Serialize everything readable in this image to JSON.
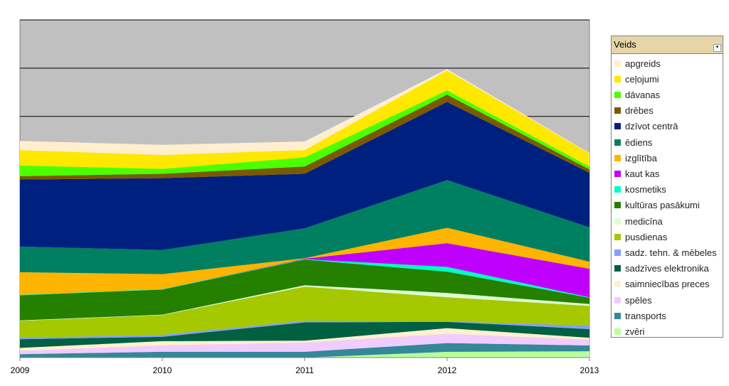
{
  "chart_data": {
    "type": "area",
    "stacked": true,
    "title": "",
    "xlabel": "",
    "ylabel": "",
    "categories": [
      "2009",
      "2010",
      "2011",
      "2012",
      "2013"
    ],
    "ylim": [
      0,
      700
    ],
    "grid": true,
    "legend_title": "Veids",
    "legend_position": "right",
    "series": [
      {
        "name": "zvēri",
        "color": "#B8FF9C",
        "values": [
          0,
          0,
          0,
          12,
          13
        ]
      },
      {
        "name": "transports",
        "color": "#338899",
        "values": [
          7,
          12,
          12,
          18,
          12
        ]
      },
      {
        "name": "spēles",
        "color": "#F0CCFF",
        "values": [
          7,
          13,
          19,
          19,
          12
        ]
      },
      {
        "name": "saimniecības preces",
        "color": "#FFF0D0",
        "values": [
          6,
          9,
          4,
          12,
          4
        ]
      },
      {
        "name": "sadzīves elektronika",
        "color": "#006040",
        "values": [
          18,
          9,
          38,
          13,
          18
        ]
      },
      {
        "name": "sadz. tehn. & mēbeles",
        "color": "#80A0FF",
        "values": [
          3,
          4,
          3,
          1,
          7
        ]
      },
      {
        "name": "pusdienas",
        "color": "#A5C800",
        "values": [
          35,
          41,
          71,
          50,
          41
        ]
      },
      {
        "name": "medicīna",
        "color": "#DDFFD0",
        "values": [
          1,
          1,
          3,
          9,
          4
        ]
      },
      {
        "name": "kultūras pasākumi",
        "color": "#258000",
        "values": [
          52,
          52,
          53,
          44,
          13
        ]
      },
      {
        "name": "kosmetiks",
        "color": "#00FFC0",
        "values": [
          1,
          1,
          1,
          10,
          1
        ]
      },
      {
        "name": "kaut kas",
        "color": "#C000FF",
        "values": [
          0,
          0,
          1,
          49,
          59
        ]
      },
      {
        "name": "izglītība",
        "color": "#FFB400",
        "values": [
          47,
          31,
          1,
          32,
          15
        ]
      },
      {
        "name": "ēdiens",
        "color": "#008060",
        "values": [
          53,
          50,
          62,
          99,
          71
        ]
      },
      {
        "name": "dzīvot centrā",
        "color": "#002080",
        "values": [
          139,
          149,
          113,
          162,
          113
        ]
      },
      {
        "name": "drēbes",
        "color": "#7A5A00",
        "values": [
          7,
          9,
          15,
          15,
          7
        ]
      },
      {
        "name": "dāvanas",
        "color": "#4CFF00",
        "values": [
          22,
          10,
          19,
          9,
          6
        ]
      },
      {
        "name": "ceļojumi",
        "color": "#FFE800",
        "values": [
          32,
          29,
          15,
          41,
          27
        ]
      },
      {
        "name": "apgreids",
        "color": "#FFEFCF",
        "values": [
          19,
          21,
          18,
          3,
          1
        ]
      }
    ],
    "plot_background": "#C0C0C0"
  }
}
